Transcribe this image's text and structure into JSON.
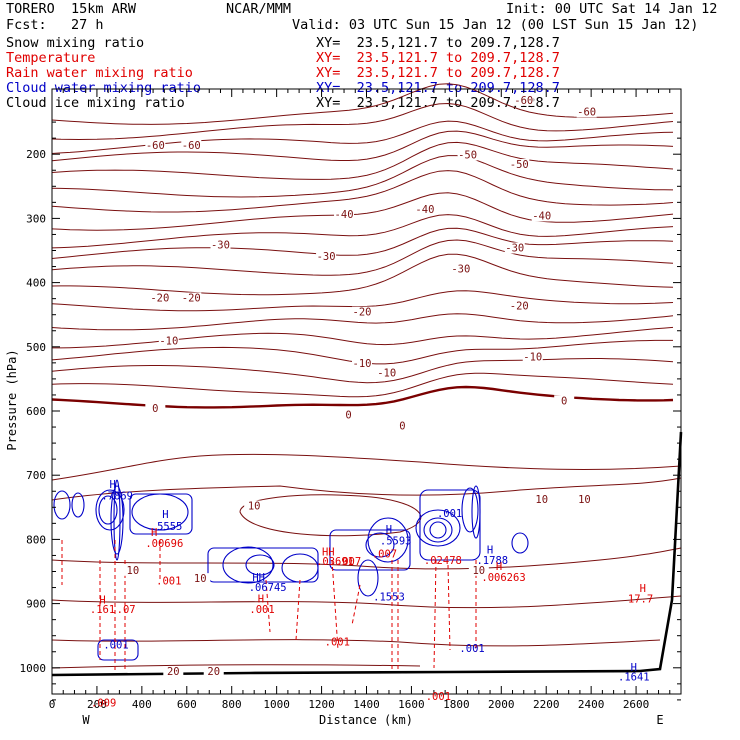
{
  "header": {
    "model": "TORERO  15km ARW",
    "center": "NCAR/MMM",
    "init": "Init: 00 UTC Sat 14 Jan 12",
    "fcst": "Fcst:   27 h",
    "valid": "Valid: 03 UTC Sun 15 Jan 12 (00 LST Sun 15 Jan 12)"
  },
  "fields": [
    {
      "name": "Snow mixing ratio",
      "xy": "XY=  23.5,121.7 to 209.7,128.7",
      "color": "#000000"
    },
    {
      "name": "Temperature",
      "xy": "XY=  23.5,121.7 to 209.7,128.7",
      "color": "#e00000"
    },
    {
      "name": "Rain water mixing ratio",
      "xy": "XY=  23.5,121.7 to 209.7,128.7",
      "color": "#e00000"
    },
    {
      "name": "Cloud water mixing ratio",
      "xy": "XY=  23.5,121.7 to 209.7,128.7",
      "color": "#0000c8"
    },
    {
      "name": "Cloud ice mixing ratio",
      "xy": "XY=  23.5,121.7 to 209.7,128.7",
      "color": "#000000"
    }
  ],
  "colors": {
    "temperature": "#7a1010",
    "zero_isotherm": "#7a0000",
    "rain": "#e00000",
    "cloud_water": "#0000c8",
    "terrain": "#000000"
  },
  "chart_data": {
    "type": "contour cross-section",
    "xlabel": "Distance (km)",
    "ylabel": "Pressure (hPa)",
    "xlim": [
      0,
      2800
    ],
    "ylim_hpa": [
      1050,
      100
    ],
    "x_ticks": [
      0,
      200,
      400,
      600,
      800,
      1000,
      1200,
      1400,
      1600,
      1800,
      2000,
      2200,
      2400,
      2600
    ],
    "y_ticks": [
      200,
      300,
      400,
      500,
      600,
      700,
      800,
      900,
      1000
    ],
    "x_end_labels": {
      "left": "W",
      "right": "E"
    },
    "grid": false,
    "temperature_labels": [
      {
        "text": "-60",
        "x": 460,
        "p": 190
      },
      {
        "text": "-60",
        "x": 620,
        "p": 190
      },
      {
        "text": "-60",
        "x": 2100,
        "p": 120
      },
      {
        "text": "-60",
        "x": 2380,
        "p": 138
      },
      {
        "text": "-50",
        "x": 1850,
        "p": 205
      },
      {
        "text": "-50",
        "x": 2080,
        "p": 220
      },
      {
        "text": "-40",
        "x": 1300,
        "p": 298
      },
      {
        "text": "-40",
        "x": 1660,
        "p": 290
      },
      {
        "text": "-40",
        "x": 2180,
        "p": 300
      },
      {
        "text": "-30",
        "x": 750,
        "p": 345
      },
      {
        "text": "-30",
        "x": 1220,
        "p": 363
      },
      {
        "text": "-30",
        "x": 1820,
        "p": 383
      },
      {
        "text": "-30",
        "x": 2060,
        "p": 350
      },
      {
        "text": "-20",
        "x": 480,
        "p": 428
      },
      {
        "text": "-20",
        "x": 620,
        "p": 428
      },
      {
        "text": "-20",
        "x": 1380,
        "p": 450
      },
      {
        "text": "-20",
        "x": 2080,
        "p": 440
      },
      {
        "text": "-10",
        "x": 520,
        "p": 495
      },
      {
        "text": "-10",
        "x": 1380,
        "p": 530
      },
      {
        "text": "-10",
        "x": 1490,
        "p": 545
      },
      {
        "text": "-10",
        "x": 2140,
        "p": 520
      },
      {
        "text": "0",
        "x": 460,
        "p": 600
      },
      {
        "text": "0",
        "x": 1320,
        "p": 610
      },
      {
        "text": "0",
        "x": 1560,
        "p": 627
      },
      {
        "text": "0",
        "x": 2280,
        "p": 588
      },
      {
        "text": "10",
        "x": 900,
        "p": 752
      },
      {
        "text": "10",
        "x": 2180,
        "p": 742
      },
      {
        "text": "10",
        "x": 2370,
        "p": 742
      },
      {
        "text": "10",
        "x": 360,
        "p": 852
      },
      {
        "text": "10",
        "x": 660,
        "p": 865
      },
      {
        "text": "10",
        "x": 1900,
        "p": 852
      },
      {
        "text": "20",
        "x": 540,
        "p": 1010
      },
      {
        "text": "20",
        "x": 720,
        "p": 1010
      }
    ],
    "max_min_labels": [
      {
        "text": "H",
        "x": 270,
        "p": 720,
        "color": "cloud_water"
      },
      {
        "text": ".7869",
        "x": 290,
        "p": 738,
        "color": "cloud_water"
      },
      {
        "text": "H",
        "x": 505,
        "p": 767,
        "color": "cloud_water"
      },
      {
        "text": ".5555",
        "x": 510,
        "p": 785,
        "color": "cloud_water"
      },
      {
        "text": "H",
        "x": 455,
        "p": 795,
        "color": "rain"
      },
      {
        "text": ".00696",
        "x": 500,
        "p": 812,
        "color": "rain"
      },
      {
        "text": ".001",
        "x": 520,
        "p": 870,
        "color": "rain"
      },
      {
        "text": "H",
        "x": 225,
        "p": 900,
        "color": "rain"
      },
      {
        "text": ".161",
        "x": 225,
        "p": 915,
        "color": "rain"
      },
      {
        "text": ".07",
        "x": 330,
        "p": 915,
        "color": "rain"
      },
      {
        "text": ".001",
        "x": 285,
        "p": 970,
        "color": "cloud_water"
      },
      {
        "text": "HH",
        "x": 920,
        "p": 865,
        "color": "cloud_water"
      },
      {
        "text": ".06745",
        "x": 960,
        "p": 880,
        "color": "cloud_water"
      },
      {
        "text": "H",
        "x": 930,
        "p": 898,
        "color": "rain"
      },
      {
        "text": ".001",
        "x": 935,
        "p": 915,
        "color": "rain"
      },
      {
        "text": "HH",
        "x": 1230,
        "p": 825,
        "color": "rain"
      },
      {
        "text": ".03691",
        "x": 1260,
        "p": 840,
        "color": "rain"
      },
      {
        "text": ".007",
        "x": 1320,
        "p": 840,
        "color": "rain"
      },
      {
        "text": "H",
        "x": 1500,
        "p": 790,
        "color": "cloud_water"
      },
      {
        "text": ".5593",
        "x": 1530,
        "p": 808,
        "color": "cloud_water"
      },
      {
        "text": ".007",
        "x": 1480,
        "p": 828,
        "color": "rain"
      },
      {
        "text": ".1553",
        "x": 1500,
        "p": 895,
        "color": "cloud_water"
      },
      {
        "text": ".001",
        "x": 1270,
        "p": 965,
        "color": "rain"
      },
      {
        "text": ".001",
        "x": 1770,
        "p": 765,
        "color": "cloud_water"
      },
      {
        "text": ".02478",
        "x": 1740,
        "p": 838,
        "color": "rain"
      },
      {
        "text": "H",
        "x": 1950,
        "p": 822,
        "color": "cloud_water"
      },
      {
        "text": ".1788",
        "x": 1960,
        "p": 838,
        "color": "cloud_water"
      },
      {
        "text": "H",
        "x": 1990,
        "p": 848,
        "color": "rain"
      },
      {
        "text": ".006263",
        "x": 2010,
        "p": 865,
        "color": "rain"
      },
      {
        "text": ".001",
        "x": 1870,
        "p": 975,
        "color": "cloud_water"
      },
      {
        "text": ".001",
        "x": 1720,
        "p": 1050,
        "color": "rain"
      },
      {
        "text": "H",
        "x": 2630,
        "p": 882,
        "color": "rain"
      },
      {
        "text": "17.7",
        "x": 2620,
        "p": 898,
        "color": "rain"
      },
      {
        "text": "H",
        "x": 2590,
        "p": 1005,
        "color": "cloud_water"
      },
      {
        "text": ".1641",
        "x": 2590,
        "p": 1020,
        "color": "cloud_water"
      },
      {
        "text": ".009",
        "x": 230,
        "p": 1060,
        "color": "rain"
      }
    ]
  }
}
